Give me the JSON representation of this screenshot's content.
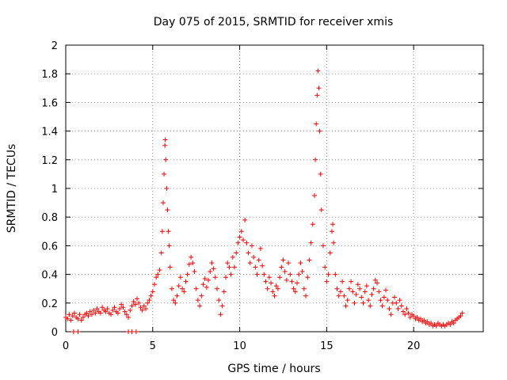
{
  "chart_data": {
    "type": "scatter",
    "title": "Day 075 of 2015, SRMTID for receiver xmis",
    "xlabel": "GPS time / hours",
    "ylabel": "SRMTID / TECUs",
    "xlim": [
      0,
      24
    ],
    "ylim": [
      0,
      2
    ],
    "xticks": [
      0,
      5,
      10,
      15,
      20
    ],
    "yticks": [
      0,
      0.2,
      0.4,
      0.6,
      0.8,
      1,
      1.2,
      1.4,
      1.6,
      1.8,
      2
    ],
    "ytick_labels": [
      "0",
      "0.2",
      "0.4",
      "0.6",
      "0.8",
      "1",
      "1.2",
      "1.4",
      "1.6",
      "1.8",
      "2"
    ],
    "xtick_labels": [
      "0",
      "5",
      "10",
      "15",
      "20"
    ],
    "grid": true,
    "marker": "+",
    "series": [
      {
        "name": "SRMTID",
        "color": "#ff0000",
        "points": [
          [
            0.0,
            0.1
          ],
          [
            0.1,
            0.09
          ],
          [
            0.2,
            0.12
          ],
          [
            0.3,
            0.08
          ],
          [
            0.4,
            0.11
          ],
          [
            0.5,
            0.13
          ],
          [
            0.6,
            0.1
          ],
          [
            0.7,
            0.09
          ],
          [
            0.8,
            0.12
          ],
          [
            0.9,
            0.08
          ],
          [
            1.0,
            0.1
          ],
          [
            1.1,
            0.12
          ],
          [
            1.2,
            0.13
          ],
          [
            1.3,
            0.11
          ],
          [
            1.4,
            0.14
          ],
          [
            1.5,
            0.12
          ],
          [
            1.6,
            0.15
          ],
          [
            1.7,
            0.13
          ],
          [
            1.8,
            0.16
          ],
          [
            1.9,
            0.14
          ],
          [
            2.0,
            0.13
          ],
          [
            2.1,
            0.17
          ],
          [
            2.2,
            0.15
          ],
          [
            2.3,
            0.14
          ],
          [
            2.4,
            0.16
          ],
          [
            2.5,
            0.13
          ],
          [
            2.6,
            0.12
          ],
          [
            2.7,
            0.15
          ],
          [
            2.8,
            0.17
          ],
          [
            2.9,
            0.14
          ],
          [
            3.0,
            0.13
          ],
          [
            3.1,
            0.16
          ],
          [
            3.2,
            0.19
          ],
          [
            3.3,
            0.17
          ],
          [
            3.4,
            0.14
          ],
          [
            3.5,
            0.12
          ],
          [
            3.6,
            0.1
          ],
          [
            3.7,
            0.15
          ],
          [
            3.8,
            0.18
          ],
          [
            3.9,
            0.21
          ],
          [
            4.0,
            0.19
          ],
          [
            4.1,
            0.23
          ],
          [
            4.2,
            0.2
          ],
          [
            4.3,
            0.17
          ],
          [
            4.4,
            0.15
          ],
          [
            4.5,
            0.18
          ],
          [
            4.6,
            0.16
          ],
          [
            4.7,
            0.2
          ],
          [
            4.8,
            0.22
          ],
          [
            4.9,
            0.25
          ],
          [
            5.0,
            0.28
          ],
          [
            5.1,
            0.33
          ],
          [
            5.2,
            0.38
          ],
          [
            5.3,
            0.4
          ],
          [
            5.4,
            0.43
          ],
          [
            5.5,
            0.55
          ],
          [
            5.55,
            0.7
          ],
          [
            5.6,
            0.9
          ],
          [
            5.65,
            1.1
          ],
          [
            5.7,
            1.3
          ],
          [
            5.72,
            1.34
          ],
          [
            5.75,
            1.2
          ],
          [
            5.8,
            1.0
          ],
          [
            5.85,
            0.85
          ],
          [
            5.9,
            0.7
          ],
          [
            5.95,
            0.6
          ],
          [
            6.0,
            0.45
          ],
          [
            6.1,
            0.3
          ],
          [
            6.2,
            0.22
          ],
          [
            6.3,
            0.2
          ],
          [
            6.4,
            0.25
          ],
          [
            6.5,
            0.32
          ],
          [
            6.6,
            0.38
          ],
          [
            6.7,
            0.3
          ],
          [
            6.8,
            0.28
          ],
          [
            6.9,
            0.35
          ],
          [
            7.0,
            0.4
          ],
          [
            7.1,
            0.47
          ],
          [
            7.2,
            0.52
          ],
          [
            7.3,
            0.48
          ],
          [
            7.4,
            0.42
          ],
          [
            7.5,
            0.3
          ],
          [
            7.6,
            0.22
          ],
          [
            7.7,
            0.18
          ],
          [
            7.8,
            0.25
          ],
          [
            7.9,
            0.33
          ],
          [
            8.0,
            0.37
          ],
          [
            8.1,
            0.31
          ],
          [
            8.2,
            0.36
          ],
          [
            8.3,
            0.42
          ],
          [
            8.4,
            0.48
          ],
          [
            8.5,
            0.44
          ],
          [
            8.6,
            0.38
          ],
          [
            8.7,
            0.3
          ],
          [
            8.8,
            0.22
          ],
          [
            8.9,
            0.12
          ],
          [
            9.0,
            0.18
          ],
          [
            9.1,
            0.28
          ],
          [
            9.2,
            0.38
          ],
          [
            9.3,
            0.48
          ],
          [
            9.4,
            0.45
          ],
          [
            9.5,
            0.4
          ],
          [
            9.6,
            0.52
          ],
          [
            9.7,
            0.45
          ],
          [
            9.8,
            0.55
          ],
          [
            9.9,
            0.62
          ],
          [
            10.0,
            0.66
          ],
          [
            10.1,
            0.7
          ],
          [
            10.2,
            0.64
          ],
          [
            10.3,
            0.78
          ],
          [
            10.4,
            0.62
          ],
          [
            10.5,
            0.55
          ],
          [
            10.6,
            0.48
          ],
          [
            10.7,
            0.6
          ],
          [
            10.8,
            0.52
          ],
          [
            10.9,
            0.45
          ],
          [
            11.0,
            0.4
          ],
          [
            11.1,
            0.5
          ],
          [
            11.2,
            0.58
          ],
          [
            11.3,
            0.46
          ],
          [
            11.4,
            0.4
          ],
          [
            11.5,
            0.35
          ],
          [
            11.6,
            0.3
          ],
          [
            11.7,
            0.38
          ],
          [
            11.8,
            0.34
          ],
          [
            11.9,
            0.28
          ],
          [
            12.0,
            0.25
          ],
          [
            12.1,
            0.32
          ],
          [
            12.2,
            0.3
          ],
          [
            12.3,
            0.38
          ],
          [
            12.4,
            0.45
          ],
          [
            12.5,
            0.5
          ],
          [
            12.6,
            0.42
          ],
          [
            12.7,
            0.36
          ],
          [
            12.8,
            0.48
          ],
          [
            12.9,
            0.4
          ],
          [
            13.0,
            0.35
          ],
          [
            13.1,
            0.3
          ],
          [
            13.2,
            0.28
          ],
          [
            13.3,
            0.34
          ],
          [
            13.4,
            0.4
          ],
          [
            13.5,
            0.48
          ],
          [
            13.6,
            0.42
          ],
          [
            13.7,
            0.3
          ],
          [
            13.8,
            0.25
          ],
          [
            13.9,
            0.38
          ],
          [
            14.0,
            0.5
          ],
          [
            14.1,
            0.62
          ],
          [
            14.2,
            0.75
          ],
          [
            14.3,
            0.95
          ],
          [
            14.35,
            1.2
          ],
          [
            14.4,
            1.45
          ],
          [
            14.45,
            1.65
          ],
          [
            14.5,
            1.82
          ],
          [
            14.55,
            1.7
          ],
          [
            14.6,
            1.4
          ],
          [
            14.65,
            1.1
          ],
          [
            14.7,
            0.85
          ],
          [
            14.8,
            0.6
          ],
          [
            14.9,
            0.45
          ],
          [
            15.0,
            0.35
          ],
          [
            15.1,
            0.4
          ],
          [
            15.2,
            0.55
          ],
          [
            15.3,
            0.7
          ],
          [
            15.35,
            0.75
          ],
          [
            15.4,
            0.62
          ],
          [
            15.5,
            0.4
          ],
          [
            15.6,
            0.3
          ],
          [
            15.7,
            0.25
          ],
          [
            15.8,
            0.28
          ],
          [
            15.9,
            0.35
          ],
          [
            16.0,
            0.25
          ],
          [
            16.1,
            0.18
          ],
          [
            16.2,
            0.22
          ],
          [
            16.3,
            0.3
          ],
          [
            16.4,
            0.35
          ],
          [
            16.5,
            0.28
          ],
          [
            16.6,
            0.2
          ],
          [
            16.7,
            0.26
          ],
          [
            16.8,
            0.33
          ],
          [
            16.9,
            0.3
          ],
          [
            17.0,
            0.24
          ],
          [
            17.1,
            0.2
          ],
          [
            17.2,
            0.28
          ],
          [
            17.3,
            0.32
          ],
          [
            17.4,
            0.22
          ],
          [
            17.5,
            0.18
          ],
          [
            17.6,
            0.26
          ],
          [
            17.7,
            0.3
          ],
          [
            17.8,
            0.36
          ],
          [
            17.9,
            0.34
          ],
          [
            18.0,
            0.28
          ],
          [
            18.1,
            0.22
          ],
          [
            18.2,
            0.18
          ],
          [
            18.3,
            0.24
          ],
          [
            18.4,
            0.29
          ],
          [
            18.5,
            0.22
          ],
          [
            18.6,
            0.16
          ],
          [
            18.7,
            0.12
          ],
          [
            18.8,
            0.2
          ],
          [
            18.9,
            0.24
          ],
          [
            19.0,
            0.2
          ],
          [
            19.1,
            0.16
          ],
          [
            19.2,
            0.22
          ],
          [
            19.3,
            0.18
          ],
          [
            19.4,
            0.14
          ],
          [
            19.5,
            0.12
          ],
          [
            19.6,
            0.16
          ],
          [
            19.7,
            0.13
          ],
          [
            19.8,
            0.1
          ],
          [
            19.9,
            0.12
          ],
          [
            20.0,
            0.11
          ],
          [
            20.1,
            0.09
          ],
          [
            20.2,
            0.1
          ],
          [
            20.3,
            0.08
          ],
          [
            20.4,
            0.09
          ],
          [
            20.5,
            0.07
          ],
          [
            20.6,
            0.08
          ],
          [
            20.7,
            0.06
          ],
          [
            20.8,
            0.07
          ],
          [
            20.9,
            0.05
          ],
          [
            21.0,
            0.06
          ],
          [
            21.1,
            0.04
          ],
          [
            21.2,
            0.05
          ],
          [
            21.3,
            0.04
          ],
          [
            21.4,
            0.06
          ],
          [
            21.5,
            0.05
          ],
          [
            21.6,
            0.04
          ],
          [
            21.7,
            0.05
          ],
          [
            21.8,
            0.04
          ],
          [
            21.9,
            0.05
          ],
          [
            22.0,
            0.06
          ],
          [
            22.1,
            0.05
          ],
          [
            22.2,
            0.07
          ],
          [
            22.3,
            0.06
          ],
          [
            22.4,
            0.08
          ],
          [
            22.5,
            0.09
          ],
          [
            22.6,
            0.1
          ],
          [
            22.7,
            0.11
          ],
          [
            22.8,
            0.13
          ],
          [
            0.45,
            0.0
          ],
          [
            0.7,
            0.0
          ],
          [
            3.6,
            0.0
          ],
          [
            3.8,
            0.0
          ],
          [
            4.05,
            0.0
          ]
        ]
      }
    ]
  }
}
